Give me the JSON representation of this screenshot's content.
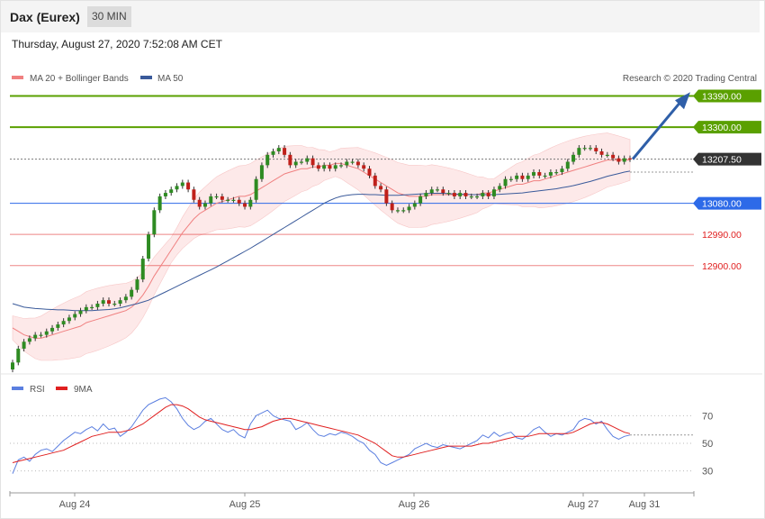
{
  "header": {
    "instrument": "Dax (Eurex)",
    "timeframe": "30 MIN"
  },
  "timestamp": "Thursday, August 27, 2020 7:52:08 AM CET",
  "price_panel": {
    "legend": [
      {
        "label": "MA 20 + Bollinger Bands",
        "color": "#f08080"
      },
      {
        "label": "MA 50",
        "color": "#3a5a9a"
      }
    ],
    "copyright": "Research © 2020 Trading Central",
    "levels": [
      {
        "label": "13390.00",
        "value": 13390,
        "kind": "resistance",
        "color": "#5aa000"
      },
      {
        "label": "13300.00",
        "value": 13300,
        "kind": "resistance",
        "color": "#5aa000"
      },
      {
        "label": "13207.50",
        "value": 13207.5,
        "kind": "last",
        "color": "#333333"
      },
      {
        "label": "13080.00",
        "value": 13080,
        "kind": "pivot",
        "color": "#2d6ae8"
      },
      {
        "label": "12990.00",
        "value": 12990,
        "kind": "support",
        "color": "#e02020"
      },
      {
        "label": "12900.00",
        "value": 12900,
        "kind": "support",
        "color": "#e02020"
      }
    ]
  },
  "rsi_panel": {
    "legend": [
      {
        "label": "RSI",
        "color": "#5b7fe0"
      },
      {
        "label": "9MA",
        "color": "#e02020"
      }
    ],
    "ticks": [
      "70",
      "50",
      "30"
    ]
  },
  "x_axis": {
    "labels": [
      "Aug 24",
      "Aug 25",
      "Aug 26",
      "Aug 27",
      "Aug 31"
    ]
  },
  "chart_data": {
    "type": "line",
    "title": "Dax (Eurex)",
    "timeframe": "30 MIN",
    "x_labels": [
      "Aug 24",
      "Aug 25",
      "Aug 26",
      "Aug 27",
      "Aug 31"
    ],
    "price_ylim": [
      12600,
      13420
    ],
    "rsi_ylim": [
      20,
      80
    ],
    "close": [
      12620,
      12660,
      12680,
      12690,
      12700,
      12700,
      12710,
      12720,
      12730,
      12740,
      12750,
      12760,
      12770,
      12780,
      12780,
      12790,
      12800,
      12790,
      12790,
      12800,
      12810,
      12830,
      12860,
      12920,
      12990,
      13060,
      13100,
      13110,
      13120,
      13130,
      13140,
      13120,
      13090,
      13070,
      13080,
      13100,
      13100,
      13090,
      13090,
      13090,
      13080,
      13070,
      13090,
      13150,
      13190,
      13220,
      13230,
      13240,
      13220,
      13190,
      13200,
      13200,
      13210,
      13190,
      13180,
      13190,
      13180,
      13190,
      13190,
      13200,
      13200,
      13190,
      13180,
      13160,
      13130,
      13120,
      13080,
      13060,
      13060,
      13060,
      13070,
      13080,
      13100,
      13110,
      13120,
      13120,
      13110,
      13110,
      13100,
      13110,
      13100,
      13100,
      13100,
      13110,
      13100,
      13120,
      13130,
      13150,
      13150,
      13160,
      13150,
      13160,
      13170,
      13160,
      13160,
      13170,
      13170,
      13180,
      13200,
      13220,
      13240,
      13240,
      13240,
      13230,
      13220,
      13220,
      13210,
      13200,
      13210,
      13207.5
    ],
    "ma20": [
      12720,
      12710,
      12700,
      12695,
      12690,
      12690,
      12695,
      12700,
      12705,
      12710,
      12715,
      12720,
      12725,
      12735,
      12740,
      12745,
      12750,
      12755,
      12760,
      12765,
      12770,
      12780,
      12795,
      12815,
      12840,
      12870,
      12895,
      12920,
      12945,
      12970,
      12995,
      13015,
      13035,
      13050,
      13060,
      13070,
      13080,
      13085,
      13090,
      13095,
      13100,
      13100,
      13105,
      13115,
      13125,
      13135,
      13145,
      13155,
      13165,
      13170,
      13175,
      13180,
      13180,
      13185,
      13185,
      13190,
      13190,
      13195,
      13195,
      13190,
      13185,
      13180,
      13170,
      13160,
      13150,
      13140,
      13130,
      13120,
      13110,
      13105,
      13100,
      13100,
      13100,
      13100,
      13105,
      13105,
      13105,
      13105,
      13105,
      13105,
      13105,
      13105,
      13105,
      13110,
      13110,
      13115,
      13120,
      13125,
      13130,
      13135,
      13135,
      13140,
      13145,
      13145,
      13150,
      13155,
      13160,
      13165,
      13170,
      13175,
      13180,
      13185,
      13190,
      13195,
      13200,
      13205,
      13205,
      13205,
      13205,
      13205
    ],
    "ma50": [
      12790,
      12785,
      12780,
      12778,
      12776,
      12775,
      12774,
      12773,
      12772,
      12772,
      12771,
      12770,
      12770,
      12770,
      12770,
      12771,
      12772,
      12773,
      12775,
      12778,
      12782,
      12786,
      12790,
      12795,
      12800,
      12808,
      12816,
      12824,
      12832,
      12840,
      12848,
      12856,
      12864,
      12872,
      12880,
      12888,
      12896,
      12905,
      12914,
      12923,
      12932,
      12941,
      12950,
      12960,
      12970,
      12980,
      12990,
      13000,
      13010,
      13020,
      13030,
      13040,
      13050,
      13060,
      13070,
      13080,
      13088,
      13095,
      13100,
      13103,
      13105,
      13106,
      13106,
      13105,
      13105,
      13104,
      13103,
      13103,
      13103,
      13104,
      13105,
      13106,
      13107,
      13108,
      13109,
      13109,
      13109,
      13108,
      13107,
      13106,
      13106,
      13105,
      13105,
      13105,
      13105,
      13105,
      13106,
      13107,
      13108,
      13109,
      13110,
      13112,
      13114,
      13116,
      13118,
      13120,
      13122,
      13125,
      13128,
      13131,
      13135,
      13139,
      13143,
      13148,
      13153,
      13158,
      13162,
      13166,
      13170,
      13173
    ],
    "rsi": [
      28,
      38,
      40,
      37,
      42,
      45,
      46,
      44,
      48,
      52,
      55,
      58,
      57,
      60,
      62,
      59,
      64,
      60,
      61,
      55,
      58,
      62,
      68,
      74,
      78,
      80,
      82,
      83,
      80,
      75,
      68,
      63,
      60,
      62,
      66,
      68,
      64,
      60,
      58,
      60,
      56,
      54,
      64,
      70,
      72,
      74,
      70,
      68,
      67,
      66,
      60,
      62,
      65,
      60,
      56,
      55,
      57,
      56,
      58,
      57,
      55,
      52,
      50,
      45,
      42,
      36,
      34,
      36,
      38,
      40,
      42,
      46,
      48,
      50,
      48,
      47,
      49,
      48,
      47,
      46,
      48,
      50,
      52,
      56,
      54,
      58,
      55,
      57,
      58,
      54,
      53,
      56,
      60,
      62,
      58,
      55,
      57,
      56,
      58,
      60,
      66,
      68,
      67,
      64,
      66,
      60,
      55,
      53,
      55,
      56
    ],
    "rsi_ma9": [
      36,
      37,
      38,
      39,
      40,
      41,
      42,
      43,
      44,
      45,
      47,
      49,
      51,
      53,
      55,
      56,
      57,
      58,
      58,
      58,
      59,
      60,
      62,
      64,
      67,
      70,
      73,
      76,
      78,
      78,
      77,
      75,
      72,
      69,
      67,
      66,
      65,
      64,
      63,
      62,
      61,
      60,
      60,
      61,
      62,
      64,
      66,
      67,
      68,
      68,
      67,
      66,
      65,
      64,
      63,
      62,
      61,
      60,
      59,
      58,
      57,
      56,
      54,
      52,
      50,
      47,
      44,
      41,
      40,
      40,
      41,
      42,
      43,
      44,
      45,
      46,
      47,
      48,
      48,
      48,
      48,
      48,
      49,
      50,
      50,
      51,
      52,
      53,
      54,
      55,
      55,
      55,
      56,
      57,
      57,
      57,
      57,
      57,
      57,
      58,
      60,
      62,
      64,
      65,
      65,
      64,
      62,
      60,
      58,
      57
    ]
  }
}
